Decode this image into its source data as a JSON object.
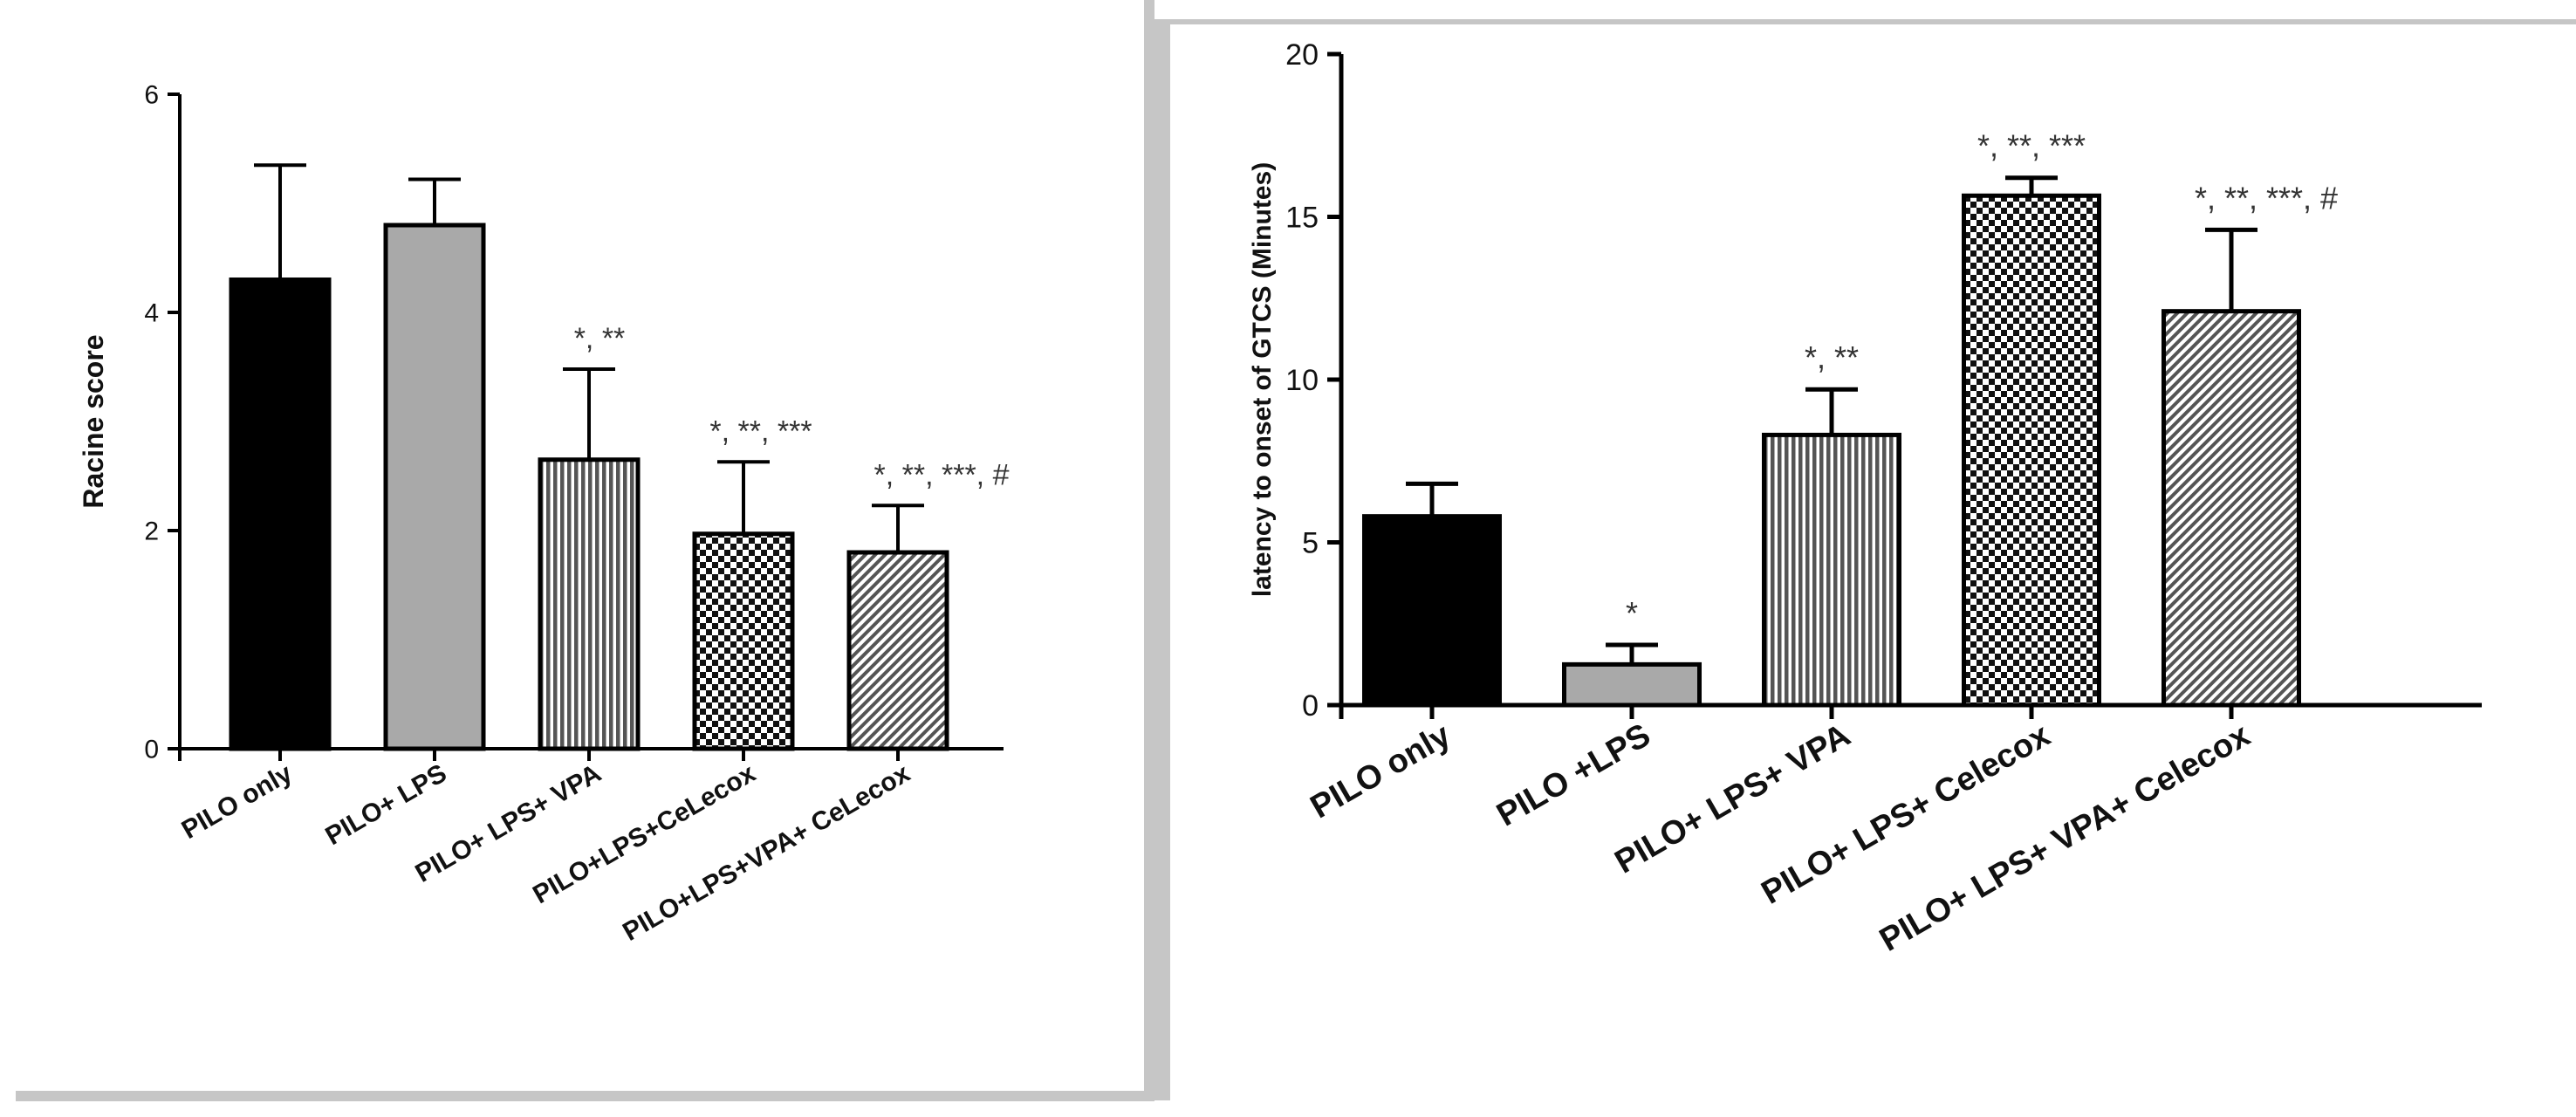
{
  "chart_data": [
    {
      "type": "bar",
      "title": "",
      "xlabel": "",
      "ylabel": "Racine score",
      "ylim": [
        0,
        6
      ],
      "yticks": [
        "0",
        "2",
        "4",
        "6"
      ],
      "categories": [
        "PILO only",
        "PILO+ LPS",
        "PILO+ LPS+ VPA",
        "PILO+LPS+CeLecox",
        "PILO+LPS+VPA+ CeLecox"
      ],
      "values": [
        4.3,
        4.8,
        2.65,
        1.97,
        1.8
      ],
      "errors": [
        1.05,
        0.42,
        0.83,
        0.66,
        0.43
      ],
      "annotations": [
        "",
        "",
        "*, **",
        "*, **, ***",
        "*, **, ***, #"
      ],
      "bar_fills": [
        "solid-black",
        "solid-gray",
        "vertical-stripes",
        "checkerboard",
        "diagonal-hatch"
      ],
      "colors": {
        "black": "#000000",
        "gray": "#a9a9a9"
      },
      "grid": false,
      "legend": "none"
    },
    {
      "type": "bar",
      "title": "",
      "xlabel": "",
      "ylabel": "latency to onset of GTCS (Minutes)",
      "ylim": [
        0,
        20
      ],
      "yticks": [
        "0",
        "5",
        "10",
        "15",
        "20"
      ],
      "categories": [
        "PILO only",
        "PILO +LPS",
        "PILO+ LPS+ VPA",
        "PILO+ LPS+ Celecox",
        "PILO+ LPS+ VPA+ Celecox"
      ],
      "values": [
        5.8,
        1.25,
        8.3,
        15.65,
        12.1
      ],
      "errors": [
        1.0,
        0.6,
        1.4,
        0.55,
        2.5
      ],
      "annotations": [
        "",
        "*",
        "*, **",
        "*, **, ***",
        "*, **, ***, #"
      ],
      "bar_fills": [
        "solid-black",
        "solid-gray",
        "vertical-stripes",
        "checkerboard",
        "diagonal-hatch"
      ],
      "colors": {
        "black": "#000000",
        "gray": "#a9a9a9"
      },
      "grid": false,
      "legend": "none"
    }
  ]
}
